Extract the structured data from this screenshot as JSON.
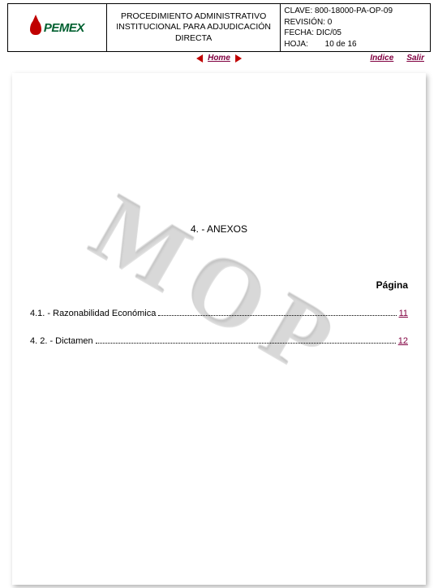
{
  "logo": {
    "brand": "PEMEX"
  },
  "header": {
    "title": "PROCEDIMIENTO ADMINISTRATIVO INSTITUCIONAL PARA ADJUDICACIÓN DIRECTA",
    "clave_label": "CLAVE:",
    "clave_value": "800-18000-PA-OP-09",
    "revision_label": "REVISIÓN:",
    "revision_value": "0",
    "fecha_label": "FECHA:",
    "fecha_value": "DIC/05",
    "hoja_label": "HOJA:",
    "hoja_value": "10 de 16"
  },
  "nav": {
    "home": "Home",
    "indice": "Indice",
    "salir": "Salir"
  },
  "content": {
    "watermark": "MOP",
    "section_title": "4. - ANEXOS",
    "pagina_label": "Página",
    "toc": [
      {
        "label": "4.1. - Razonabilidad Económica",
        "page": "11"
      },
      {
        "label": "4. 2. - Dictamen",
        "page": "12"
      }
    ]
  },
  "colors": {
    "link": "#800040",
    "accent_red": "#c00000",
    "brand_green": "#006030",
    "border": "#000000",
    "background": "#ffffff"
  }
}
